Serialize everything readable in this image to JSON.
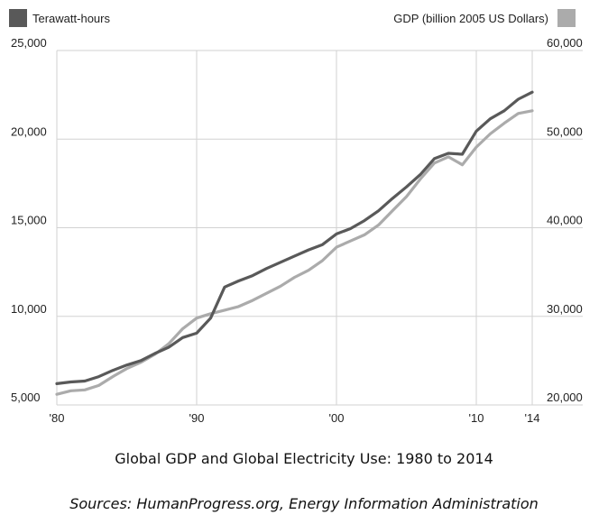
{
  "legend": {
    "left": {
      "label": "Terawatt-hours",
      "color": "#595959"
    },
    "right": {
      "label": "GDP (billion 2005 US Dollars)",
      "color": "#ababab"
    }
  },
  "caption": {
    "title": "Global GDP and Global Electricity Use: 1980 to 2014",
    "source": "Sources: HumanProgress.org, Energy Information Administration"
  },
  "chart_data": {
    "type": "line",
    "x": [
      1980,
      1981,
      1982,
      1983,
      1984,
      1985,
      1986,
      1987,
      1988,
      1989,
      1990,
      1991,
      1992,
      1993,
      1994,
      1995,
      1996,
      1997,
      1998,
      1999,
      2000,
      2001,
      2002,
      2003,
      2004,
      2005,
      2006,
      2007,
      2008,
      2009,
      2010,
      2011,
      2012,
      2013,
      2014
    ],
    "xlim": [
      1980,
      2014
    ],
    "xticks": [
      {
        "value": 1980,
        "label": "'80"
      },
      {
        "value": 1990,
        "label": "'90"
      },
      {
        "value": 2000,
        "label": "'00"
      },
      {
        "value": 2010,
        "label": "'10"
      },
      {
        "value": 2014,
        "label": "'14"
      }
    ],
    "y_left": {
      "label": "Terawatt-hours",
      "lim": [
        5000,
        25000
      ],
      "ticks": [
        5000,
        10000,
        15000,
        20000,
        25000
      ],
      "tick_labels": [
        "5,000",
        "10,000",
        "15,000",
        "20,000",
        "25,000"
      ]
    },
    "y_right": {
      "label": "GDP (billion 2005 US Dollars)",
      "lim": [
        20000,
        60000
      ],
      "ticks": [
        20000,
        30000,
        40000,
        50000,
        60000
      ],
      "tick_labels": [
        "20,000",
        "30,000",
        "40,000",
        "50,000",
        "60,000"
      ]
    },
    "grid": true,
    "series": [
      {
        "name": "Terawatt-hours",
        "axis": "left",
        "color": "#595959",
        "values": [
          6200,
          6300,
          6350,
          6600,
          6950,
          7250,
          7500,
          7900,
          8250,
          8800,
          9050,
          9900,
          11650,
          12000,
          12300,
          12700,
          13050,
          13400,
          13750,
          14050,
          14650,
          14950,
          15400,
          15950,
          16650,
          17300,
          18000,
          18900,
          19200,
          19150,
          20450,
          21150,
          21600,
          22250,
          22650
        ]
      },
      {
        "name": "GDP (billion 2005 US Dollars)",
        "axis": "right",
        "color": "#ababab",
        "values": [
          21200,
          21600,
          21700,
          22200,
          23200,
          24100,
          24800,
          25700,
          26900,
          28600,
          29800,
          30300,
          30700,
          31100,
          31800,
          32600,
          33400,
          34400,
          35200,
          36300,
          37800,
          38500,
          39200,
          40300,
          41900,
          43500,
          45500,
          47300,
          48000,
          47100,
          49100,
          50600,
          51800,
          52900,
          53200
        ]
      }
    ]
  }
}
